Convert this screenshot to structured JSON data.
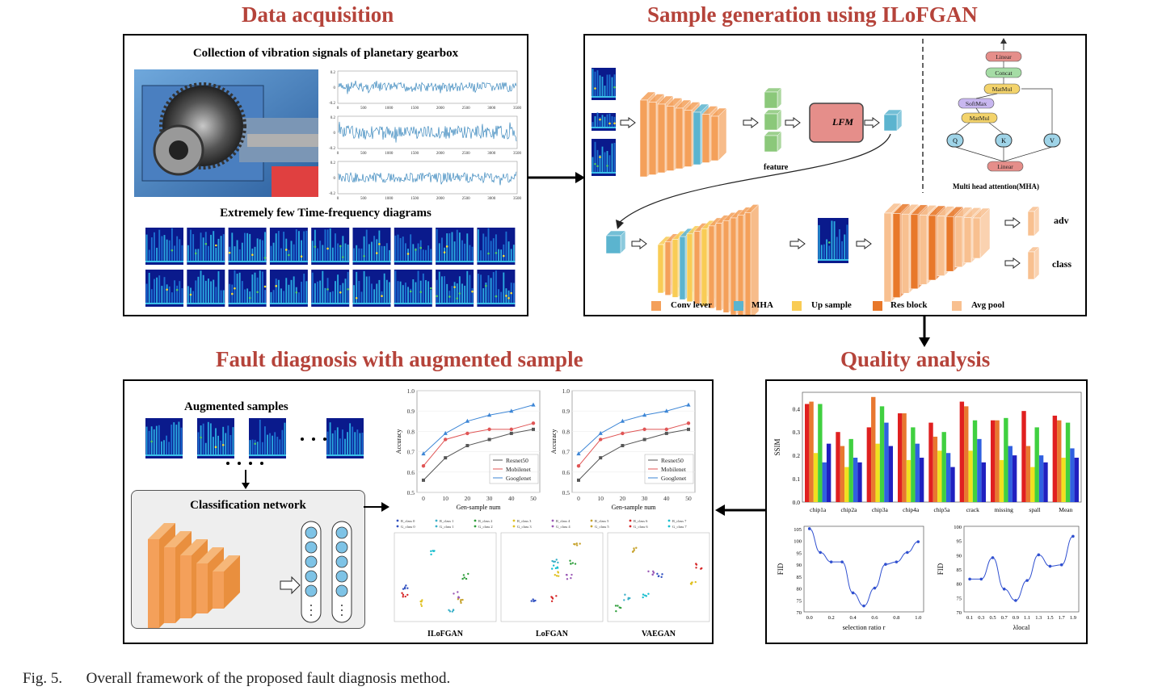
{
  "titles": {
    "data_acquisition": "Data acquisition",
    "sample_generation": "Sample generation using ILoFGAN",
    "fault_diagnosis": "Fault diagnosis with augmented sample",
    "quality_analysis": "Quality analysis"
  },
  "data_panel": {
    "collection_label": "Collection of vibration signals of planetary gearbox",
    "tf_label": "Extremely few Time-frequency diagrams",
    "signal_yticks": [
      "0.2",
      "0",
      "-0.2"
    ],
    "signal_xticks": [
      "0",
      "500",
      "1000",
      "1500",
      "2000",
      "2500",
      "3000",
      "3500"
    ]
  },
  "gan_panel": {
    "feature_label": "feature",
    "lfm_label": "LFM",
    "mha_caption": "Multi head attention(MHA)",
    "mha_blocks": [
      "Linear",
      "Concat",
      "MatMul",
      "SoftMax",
      "MatMul",
      "Linear"
    ],
    "qkv": [
      "Q",
      "K",
      "V"
    ],
    "adv_label": "adv",
    "class_label": "class",
    "legend": [
      "Conv lever",
      "MHA",
      "Up sample",
      "Res block",
      "Avg pool"
    ],
    "colors": {
      "conv": "#f4a05a",
      "mha": "#5bb4cf",
      "up": "#f9cc55",
      "res": "#e8782a",
      "avg": "#f8c090"
    }
  },
  "diag_panel": {
    "augmented_label": "Augmented samples",
    "classification_label": "Classification network",
    "accuracy_chart": {
      "xlabel": "Gen-sample num",
      "ylabel": "Accuracy",
      "x": [
        0,
        10,
        20,
        30,
        40,
        50
      ],
      "yticks": [
        "0.5",
        "0.6",
        "0.7",
        "0.8",
        "0.9",
        "1.0"
      ],
      "series": [
        {
          "name": "Resnet50",
          "color": "#555555",
          "marker": "square",
          "values": [
            0.56,
            0.67,
            0.73,
            0.76,
            0.79,
            0.81
          ]
        },
        {
          "name": "Mobilenet",
          "color": "#e05555",
          "marker": "circle",
          "values": [
            0.63,
            0.76,
            0.79,
            0.81,
            0.81,
            0.84
          ]
        },
        {
          "name": "Googlenet",
          "color": "#3d86d6",
          "marker": "triangle",
          "values": [
            0.69,
            0.79,
            0.85,
            0.88,
            0.9,
            0.93
          ]
        }
      ]
    },
    "tsne_legend": [
      "R_class 0",
      "G_class 0",
      "R_class 1",
      "G_class 1",
      "R_class 2",
      "G_class 2",
      "R_class 3",
      "G_class 3",
      "R_class 4",
      "G_class 4",
      "R_class 5",
      "G_class 5",
      "R_class 6",
      "G_class 6",
      "R_class 7",
      "G_class 7"
    ],
    "tsne_labels": [
      "ILoFGAN",
      "LoFGAN",
      "VAEGAN"
    ]
  },
  "quality_panel": {
    "ssim_chart": {
      "ylabel": "SSIM",
      "categories": [
        "chip1a",
        "chip2a",
        "chip3a",
        "chip4a",
        "chip5a",
        "crack",
        "missing",
        "spall",
        "Mean"
      ],
      "yticks": [
        "0.0",
        "0.1",
        "0.2",
        "0.3",
        "0.4"
      ],
      "colors": [
        "#e02020",
        "#e87830",
        "#f0e020",
        "#40d040",
        "#3060e0",
        "#2020c0"
      ],
      "values": [
        [
          0.42,
          0.43,
          0.21,
          0.42,
          0.17,
          0.25
        ],
        [
          0.3,
          0.24,
          0.15,
          0.27,
          0.19,
          0.17
        ],
        [
          0.32,
          0.45,
          0.25,
          0.41,
          0.34,
          0.24
        ],
        [
          0.38,
          0.38,
          0.18,
          0.32,
          0.25,
          0.19
        ],
        [
          0.34,
          0.28,
          0.22,
          0.3,
          0.21,
          0.15
        ],
        [
          0.43,
          0.41,
          0.22,
          0.35,
          0.27,
          0.17
        ],
        [
          0.35,
          0.35,
          0.18,
          0.36,
          0.24,
          0.2
        ],
        [
          0.39,
          0.24,
          0.15,
          0.32,
          0.2,
          0.17
        ],
        [
          0.37,
          0.35,
          0.19,
          0.34,
          0.23,
          0.19
        ]
      ]
    },
    "fid_r_chart": {
      "ylabel": "FID",
      "xlabel": "selection ratio r",
      "xticks": [
        "0.0",
        "0.2",
        "0.4",
        "0.6",
        "0.8",
        "1.0"
      ],
      "yticks": [
        "70",
        "75",
        "80",
        "85",
        "90",
        "95",
        "100",
        "105"
      ],
      "x": [
        0.0,
        0.1,
        0.2,
        0.3,
        0.4,
        0.5,
        0.6,
        0.7,
        0.8,
        0.9,
        1.0
      ],
      "y": [
        105,
        95,
        91,
        91,
        78,
        72.5,
        80,
        90,
        91,
        95,
        99.5
      ]
    },
    "fid_lambda_chart": {
      "ylabel": "FID",
      "xlabel": "λlocal",
      "xticks": [
        "0.1",
        "0.3",
        "0.5",
        "0.7",
        "0.9",
        "1.1",
        "1.3",
        "1.5",
        "1.7",
        "1.9"
      ],
      "yticks": [
        "70",
        "75",
        "80",
        "85",
        "90",
        "95",
        "100"
      ],
      "x": [
        0.1,
        0.3,
        0.5,
        0.7,
        0.9,
        1.1,
        1.3,
        1.5,
        1.7,
        1.9
      ],
      "y": [
        81.5,
        81.5,
        89,
        78,
        74,
        81,
        90,
        86,
        86.5,
        96.5
      ]
    }
  },
  "caption": {
    "fig": "Fig. 5.",
    "text": "Overall framework of the proposed fault diagnosis method."
  }
}
